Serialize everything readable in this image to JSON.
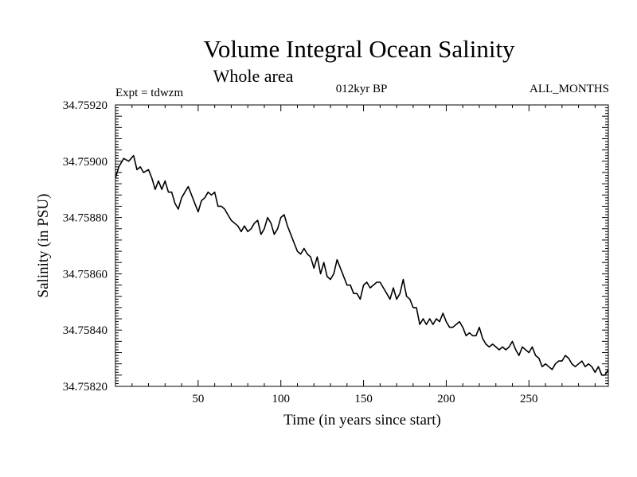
{
  "chart_data": {
    "type": "line",
    "title": "Volume Integral Ocean Salinity",
    "subtitle": "Whole area",
    "annotations": {
      "experiment": "Expt = tdwzm",
      "period": "012kyr BP",
      "months": "ALL_MONTHS"
    },
    "xlabel": "Time (in years since start)",
    "ylabel": "Salinity (in PSU)",
    "xlim": [
      0,
      298
    ],
    "ylim": [
      34.7582,
      34.7592
    ],
    "x_ticks": [
      {
        "value": 50,
        "label": "50"
      },
      {
        "value": 100,
        "label": "100"
      },
      {
        "value": 150,
        "label": "150"
      },
      {
        "value": 200,
        "label": "200"
      },
      {
        "value": 250,
        "label": "250"
      }
    ],
    "y_ticks": [
      {
        "value": 34.7582,
        "label": "34.75820"
      },
      {
        "value": 34.7584,
        "label": "34.75840"
      },
      {
        "value": 34.7586,
        "label": "34.75860"
      },
      {
        "value": 34.7588,
        "label": "34.75880"
      },
      {
        "value": 34.759,
        "label": "34.75900"
      },
      {
        "value": 34.7592,
        "label": "34.75920"
      }
    ],
    "grid": false,
    "legend": "none",
    "series": [
      {
        "color": "#000000",
        "x": [
          0,
          2,
          5,
          8,
          11,
          13,
          15,
          17,
          20,
          22,
          24,
          26,
          28,
          30,
          32,
          34,
          36,
          38,
          40,
          42,
          44,
          46,
          48,
          50,
          52,
          54,
          56,
          58,
          60,
          62,
          64,
          66,
          68,
          70,
          72,
          74,
          76,
          78,
          80,
          82,
          84,
          86,
          88,
          90,
          92,
          94,
          96,
          98,
          100,
          102,
          104,
          106,
          108,
          110,
          112,
          114,
          116,
          118,
          120,
          122,
          124,
          126,
          128,
          130,
          132,
          134,
          136,
          138,
          140,
          142,
          144,
          146,
          148,
          150,
          152,
          154,
          156,
          158,
          160,
          162,
          164,
          166,
          168,
          170,
          172,
          174,
          176,
          178,
          180,
          182,
          184,
          186,
          188,
          190,
          192,
          194,
          196,
          198,
          200,
          202,
          204,
          206,
          208,
          210,
          212,
          214,
          216,
          218,
          220,
          222,
          224,
          226,
          228,
          230,
          232,
          234,
          236,
          238,
          240,
          242,
          244,
          246,
          248,
          250,
          252,
          254,
          256,
          258,
          260,
          262,
          264,
          266,
          268,
          270,
          272,
          274,
          276,
          278,
          280,
          282,
          284,
          286,
          288,
          290,
          292,
          294,
          296,
          298
        ],
        "values": [
          34.75894,
          34.75898,
          34.75901,
          34.759,
          34.75902,
          34.75897,
          34.75898,
          34.75896,
          34.75897,
          34.75894,
          34.7589,
          34.75893,
          34.7589,
          34.75893,
          34.75889,
          34.75889,
          34.75885,
          34.75883,
          34.75887,
          34.75889,
          34.75891,
          34.75888,
          34.75885,
          34.75882,
          34.75886,
          34.75887,
          34.75889,
          34.75888,
          34.75889,
          34.75884,
          34.75884,
          34.75883,
          34.75881,
          34.75879,
          34.75878,
          34.75877,
          34.75875,
          34.75877,
          34.75875,
          34.75876,
          34.75878,
          34.75879,
          34.75874,
          34.75876,
          34.7588,
          34.75878,
          34.75874,
          34.75876,
          34.7588,
          34.75881,
          34.75877,
          34.75874,
          34.75871,
          34.75868,
          34.75867,
          34.75869,
          34.75867,
          34.75866,
          34.75862,
          34.75866,
          34.7586,
          34.75864,
          34.75859,
          34.75858,
          34.7586,
          34.75865,
          34.75862,
          34.75859,
          34.75856,
          34.75856,
          34.75853,
          34.75853,
          34.75851,
          34.75856,
          34.75857,
          34.75855,
          34.75856,
          34.75857,
          34.75857,
          34.75855,
          34.75853,
          34.75851,
          34.75855,
          34.75851,
          34.75853,
          34.75858,
          34.75852,
          34.75851,
          34.75848,
          34.75848,
          34.75842,
          34.75844,
          34.75842,
          34.75844,
          34.75842,
          34.75844,
          34.75843,
          34.75846,
          34.75843,
          34.75841,
          34.75841,
          34.75842,
          34.75843,
          34.75841,
          34.75838,
          34.75839,
          34.75838,
          34.75838,
          34.75841,
          34.75837,
          34.75835,
          34.75834,
          34.75835,
          34.75834,
          34.75833,
          34.75834,
          34.75833,
          34.75834,
          34.75836,
          34.75833,
          34.75831,
          34.75834,
          34.75833,
          34.75832,
          34.75834,
          34.75831,
          34.7583,
          34.75827,
          34.75828,
          34.75827,
          34.75826,
          34.75828,
          34.75829,
          34.75829,
          34.75831,
          34.7583,
          34.75828,
          34.75827,
          34.75828,
          34.75829,
          34.75827,
          34.75828,
          34.75827,
          34.75825,
          34.75827,
          34.75824,
          34.75824,
          34.75826
        ]
      }
    ]
  }
}
